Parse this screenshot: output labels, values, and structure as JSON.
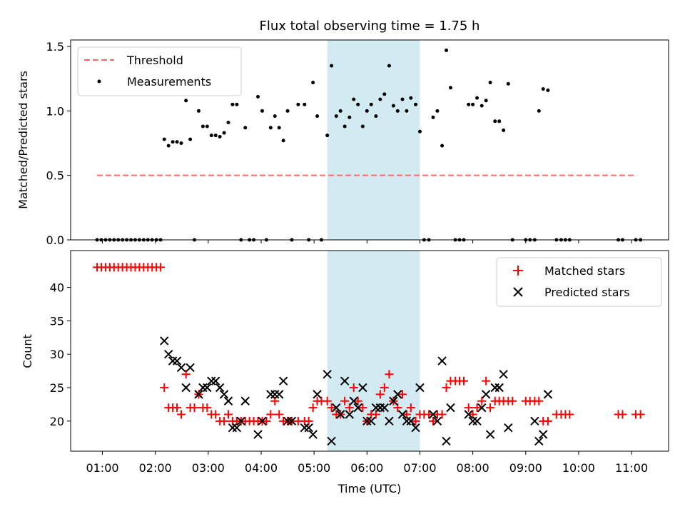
{
  "chart_data": [
    {
      "type": "scatter",
      "title": "Flux total observing time = 1.75 h",
      "ylabel": "Matched/Predicted stars",
      "xlabel": "",
      "xlim": [
        0.4,
        11.7
      ],
      "ylim": [
        0,
        1.55
      ],
      "yticks": [
        "0.0",
        "0.5",
        "1.0",
        "1.5"
      ],
      "shaded_region": {
        "x_start": 5.25,
        "x_end": 7.0,
        "color": "#add8e6"
      },
      "legend": {
        "placement": "top-left",
        "entries": [
          "Threshold",
          "Measurements"
        ]
      },
      "threshold": {
        "name": "Threshold",
        "value": 0.5,
        "x_start": 0.9,
        "x_end": 11.1,
        "color": "#ff6b6b"
      },
      "series": [
        {
          "name": "Measurements",
          "color": "#000000",
          "x": [
            0.9,
            0.98,
            1.06,
            1.14,
            1.22,
            1.3,
            1.38,
            1.46,
            1.54,
            1.62,
            1.7,
            1.78,
            1.86,
            1.94,
            2.02,
            2.1,
            2.17,
            2.25,
            2.33,
            2.41,
            2.49,
            2.58,
            2.66,
            2.74,
            2.82,
            2.9,
            2.98,
            3.06,
            3.14,
            3.22,
            3.3,
            3.38,
            3.46,
            3.54,
            3.62,
            3.7,
            3.78,
            3.86,
            3.94,
            4.02,
            4.1,
            4.18,
            4.26,
            4.34,
            4.42,
            4.5,
            4.58,
            4.7,
            4.82,
            4.9,
            4.98,
            5.06,
            5.14,
            5.25,
            5.33,
            5.42,
            5.5,
            5.58,
            5.67,
            5.75,
            5.83,
            5.92,
            6.0,
            6.08,
            6.17,
            6.25,
            6.33,
            6.42,
            6.5,
            6.58,
            6.67,
            6.75,
            6.83,
            6.92,
            7.0,
            7.08,
            7.17,
            7.25,
            7.33,
            7.42,
            7.5,
            7.58,
            7.67,
            7.75,
            7.83,
            7.92,
            8.0,
            8.08,
            8.17,
            8.25,
            8.33,
            8.42,
            8.5,
            8.58,
            8.67,
            8.75,
            9.0,
            9.08,
            9.17,
            9.25,
            9.33,
            9.42,
            9.58,
            9.67,
            9.75,
            9.83,
            10.75,
            10.83,
            11.08,
            11.17
          ],
          "values": [
            0,
            0,
            0,
            0,
            0,
            0,
            0,
            0,
            0,
            0,
            0,
            0,
            0,
            0,
            0,
            0,
            0.78,
            0.73,
            0.76,
            0.76,
            0.75,
            1.08,
            0.78,
            0,
            1.0,
            0.88,
            0.88,
            0.81,
            0.81,
            0.8,
            0.83,
            0.91,
            1.05,
            1.05,
            0,
            0.87,
            0,
            0,
            1.11,
            1.0,
            0,
            0.87,
            0.96,
            0.87,
            0.77,
            1.0,
            0,
            1.05,
            1.05,
            0,
            1.22,
            0.96,
            0,
            0.81,
            1.35,
            0.96,
            1.0,
            0.88,
            0.95,
            1.09,
            1.05,
            0.88,
            1.0,
            1.05,
            0.96,
            1.09,
            1.13,
            1.35,
            1.04,
            1.0,
            1.09,
            1.0,
            1.1,
            1.05,
            0.84,
            0,
            0,
            0.95,
            1.0,
            0.73,
            1.47,
            1.18,
            0,
            0,
            0,
            1.05,
            1.05,
            1.1,
            1.04,
            1.08,
            1.22,
            0.92,
            0.92,
            0.85,
            1.21,
            0,
            0,
            0,
            0,
            1.0,
            1.17,
            1.16,
            0,
            0,
            0,
            0,
            0,
            0,
            0,
            0
          ]
        }
      ]
    },
    {
      "type": "scatter",
      "title": "",
      "xlabel": "Time (UTC)",
      "ylabel": "Count",
      "xlim": [
        0.4,
        11.7
      ],
      "ylim": [
        15.5,
        45.5
      ],
      "yticks": [
        "20",
        "25",
        "30",
        "35",
        "40"
      ],
      "xticks": [
        "01:00",
        "02:00",
        "03:00",
        "04:00",
        "05:00",
        "06:00",
        "07:00",
        "08:00",
        "09:00",
        "10:00",
        "11:00"
      ],
      "shaded_region": {
        "x_start": 5.25,
        "x_end": 7.0,
        "color": "#add8e6"
      },
      "legend": {
        "placement": "top-right",
        "entries": [
          "Matched stars",
          "Predicted stars"
        ]
      },
      "series": [
        {
          "name": "Matched stars",
          "marker": "plus",
          "color": "#ff0000",
          "x": [
            0.9,
            0.98,
            1.06,
            1.14,
            1.22,
            1.3,
            1.38,
            1.46,
            1.54,
            1.62,
            1.7,
            1.78,
            1.86,
            1.94,
            2.02,
            2.1,
            2.17,
            2.25,
            2.33,
            2.41,
            2.49,
            2.58,
            2.66,
            2.74,
            2.82,
            2.9,
            2.98,
            3.06,
            3.14,
            3.22,
            3.3,
            3.38,
            3.46,
            3.54,
            3.62,
            3.7,
            3.78,
            3.86,
            3.94,
            4.02,
            4.1,
            4.18,
            4.26,
            4.34,
            4.42,
            4.5,
            4.58,
            4.7,
            4.82,
            4.9,
            4.98,
            5.06,
            5.14,
            5.25,
            5.33,
            5.42,
            5.5,
            5.58,
            5.67,
            5.75,
            5.83,
            5.92,
            6.0,
            6.08,
            6.17,
            6.25,
            6.33,
            6.42,
            6.5,
            6.58,
            6.67,
            6.75,
            6.83,
            6.92,
            7.0,
            7.08,
            7.17,
            7.25,
            7.33,
            7.42,
            7.5,
            7.58,
            7.67,
            7.75,
            7.83,
            7.92,
            8.0,
            8.08,
            8.17,
            8.25,
            8.33,
            8.42,
            8.5,
            8.58,
            8.67,
            8.75,
            9.0,
            9.08,
            9.17,
            9.25,
            9.33,
            9.42,
            9.58,
            9.67,
            9.75,
            9.83,
            10.75,
            10.83,
            11.08,
            11.17
          ],
          "values": [
            43,
            43,
            43,
            43,
            43,
            43,
            43,
            43,
            43,
            43,
            43,
            43,
            43,
            43,
            43,
            43,
            25,
            22,
            22,
            22,
            21,
            27,
            22,
            22,
            24,
            22,
            22,
            21,
            21,
            20,
            20,
            21,
            20,
            20,
            20,
            20,
            20,
            20,
            20,
            20,
            20,
            21,
            23,
            21,
            20,
            20,
            20,
            20,
            20,
            20,
            22,
            23,
            23,
            23,
            22,
            21,
            21,
            23,
            22,
            25,
            23,
            22,
            20,
            21,
            21,
            24,
            25,
            27,
            23,
            22,
            24,
            21,
            22,
            20,
            21,
            21,
            21,
            20,
            21,
            21,
            25,
            26,
            26,
            26,
            26,
            22,
            21,
            22,
            23,
            26,
            22,
            23,
            23,
            23,
            23,
            23,
            23,
            23,
            23,
            23,
            20,
            20,
            21,
            21,
            21,
            21,
            21,
            21,
            21,
            21
          ]
        },
        {
          "name": "Predicted stars",
          "marker": "x",
          "color": "#000000",
          "x": [
            2.17,
            2.25,
            2.33,
            2.41,
            2.49,
            2.58,
            2.66,
            2.82,
            2.9,
            2.98,
            3.06,
            3.14,
            3.22,
            3.3,
            3.38,
            3.46,
            3.54,
            3.62,
            3.7,
            3.94,
            4.02,
            4.18,
            4.26,
            4.34,
            4.42,
            4.5,
            4.58,
            4.82,
            4.9,
            4.98,
            5.06,
            5.25,
            5.33,
            5.42,
            5.5,
            5.58,
            5.67,
            5.75,
            5.83,
            5.92,
            6.0,
            6.08,
            6.17,
            6.25,
            6.33,
            6.42,
            6.5,
            6.58,
            6.67,
            6.75,
            6.83,
            6.92,
            7.0,
            7.25,
            7.33,
            7.42,
            7.5,
            7.58,
            7.92,
            8.0,
            8.08,
            8.17,
            8.25,
            8.33,
            8.42,
            8.5,
            8.58,
            8.67,
            9.17,
            9.25,
            9.33,
            9.42
          ],
          "values": [
            32,
            30,
            29,
            29,
            28,
            25,
            28,
            24,
            25,
            25,
            26,
            26,
            25,
            24,
            23,
            19,
            19,
            20,
            23,
            18,
            20,
            24,
            24,
            24,
            26,
            20,
            20,
            19,
            19,
            18,
            24,
            27,
            17,
            22,
            21,
            26,
            21,
            23,
            22,
            25,
            20,
            20,
            22,
            22,
            22,
            20,
            23,
            24,
            21,
            20,
            20,
            19,
            25,
            21,
            20,
            29,
            17,
            22,
            21,
            20,
            20,
            22,
            24,
            18,
            25,
            25,
            27,
            19,
            20,
            17,
            18,
            24
          ]
        }
      ]
    }
  ]
}
